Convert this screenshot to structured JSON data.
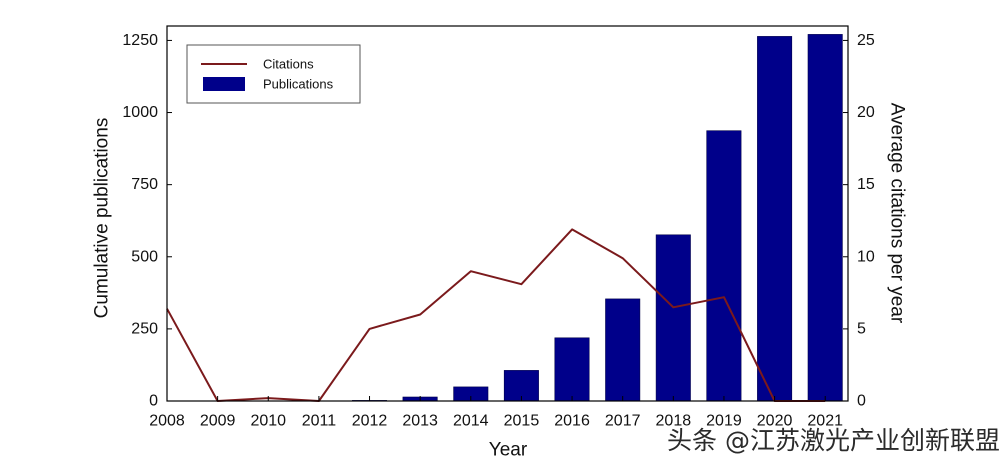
{
  "chart_data": {
    "type": "bar",
    "xlabel": "Year",
    "ylabel": "Cumulative publications",
    "ylabel_right": "Average citations per year",
    "x": [
      2008,
      2009,
      2010,
      2011,
      2012,
      2013,
      2014,
      2015,
      2016,
      2017,
      2018,
      2019,
      2020,
      2021
    ],
    "xlim": [
      2008,
      2021.45
    ],
    "ylim": [
      0,
      1300
    ],
    "ylim_right": [
      0,
      26
    ],
    "y_ticks": [
      0,
      250,
      500,
      750,
      1000,
      1250
    ],
    "y_ticks_right": [
      0,
      5,
      10,
      15,
      20,
      25
    ],
    "grid": false,
    "legend_position": "top-left",
    "series": [
      {
        "name": "Citations",
        "type": "line",
        "axis": "right",
        "color": "#7b1a1c",
        "values": [
          6.4,
          0,
          0.2,
          0,
          5.0,
          6.0,
          9.0,
          8.1,
          11.9,
          9.9,
          6.5,
          7.2,
          0,
          0
        ]
      },
      {
        "name": "Publications",
        "type": "bar",
        "axis": "left",
        "color": "#00008a",
        "values": [
          0,
          0,
          0,
          0,
          2,
          14,
          49,
          106,
          219,
          354,
          576,
          937,
          1264,
          1271
        ]
      }
    ]
  },
  "watermark": {
    "text": "头条 @江苏激光产业创新联盟"
  }
}
